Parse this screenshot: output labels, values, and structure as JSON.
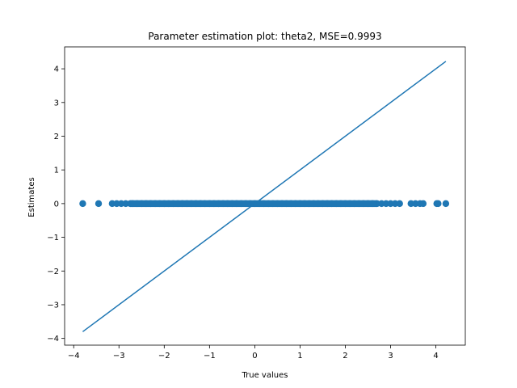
{
  "chart_data": {
    "type": "scatter",
    "title": "Parameter estimation plot: theta2, MSE=0.9993",
    "xlabel": "True values",
    "ylabel": "Estimates",
    "xlim": [
      -4.2,
      4.65
    ],
    "ylim": [
      -4.2,
      4.65
    ],
    "xticks": [
      -4,
      -3,
      -2,
      -1,
      0,
      1,
      2,
      3,
      4
    ],
    "yticks": [
      -4,
      -3,
      -2,
      -1,
      0,
      1,
      2,
      3,
      4
    ],
    "xtick_labels": [
      "−4",
      "−3",
      "−2",
      "−1",
      "0",
      "1",
      "2",
      "3",
      "4"
    ],
    "ytick_labels": [
      "−4",
      "−3",
      "−2",
      "−1",
      "0",
      "1",
      "2",
      "3",
      "4"
    ],
    "grid": false,
    "series": [
      {
        "kind": "scatter",
        "color": "#1f77b4",
        "x": [
          -3.8,
          -3.45,
          -3.15,
          -3.05,
          -2.95,
          -2.85,
          -2.75,
          -2.7,
          -2.6,
          -2.5,
          -2.4,
          -2.3,
          -2.2,
          -2.1,
          -2.0,
          -1.9,
          -1.8,
          -1.7,
          -1.6,
          -1.5,
          -1.4,
          -1.3,
          -1.2,
          -1.1,
          -1.0,
          -0.9,
          -0.8,
          -0.7,
          -0.6,
          -0.5,
          -0.4,
          -0.3,
          -0.2,
          -0.1,
          0.0,
          0.1,
          0.2,
          0.3,
          0.4,
          0.5,
          0.6,
          0.7,
          0.8,
          0.9,
          1.0,
          1.1,
          1.2,
          1.3,
          1.4,
          1.5,
          1.6,
          1.7,
          1.8,
          1.9,
          2.0,
          2.1,
          2.2,
          2.3,
          2.4,
          2.5,
          2.6,
          2.7,
          2.8,
          2.9,
          3.0,
          3.1,
          3.2,
          3.45,
          3.55,
          3.65,
          3.72,
          4.02,
          4.05,
          4.22
        ],
        "y": [
          0,
          0,
          0,
          0,
          0,
          0,
          0,
          0,
          0,
          0,
          0,
          0,
          0,
          0,
          0,
          0,
          0,
          0,
          0,
          0,
          0,
          0,
          0,
          0,
          0,
          0,
          0,
          0,
          0,
          0,
          0,
          0,
          0,
          0,
          0,
          0,
          0,
          0,
          0,
          0,
          0,
          0,
          0,
          0,
          0,
          0,
          0,
          0,
          0,
          0,
          0,
          0,
          0,
          0,
          0,
          0,
          0,
          0,
          0,
          0,
          0,
          0,
          0,
          0,
          0,
          0,
          0,
          0,
          0,
          0,
          0,
          0,
          0,
          0
        ]
      },
      {
        "kind": "line",
        "color": "#1f77b4",
        "x": [
          -3.8,
          4.22
        ],
        "y": [
          -3.8,
          4.22
        ]
      }
    ]
  }
}
